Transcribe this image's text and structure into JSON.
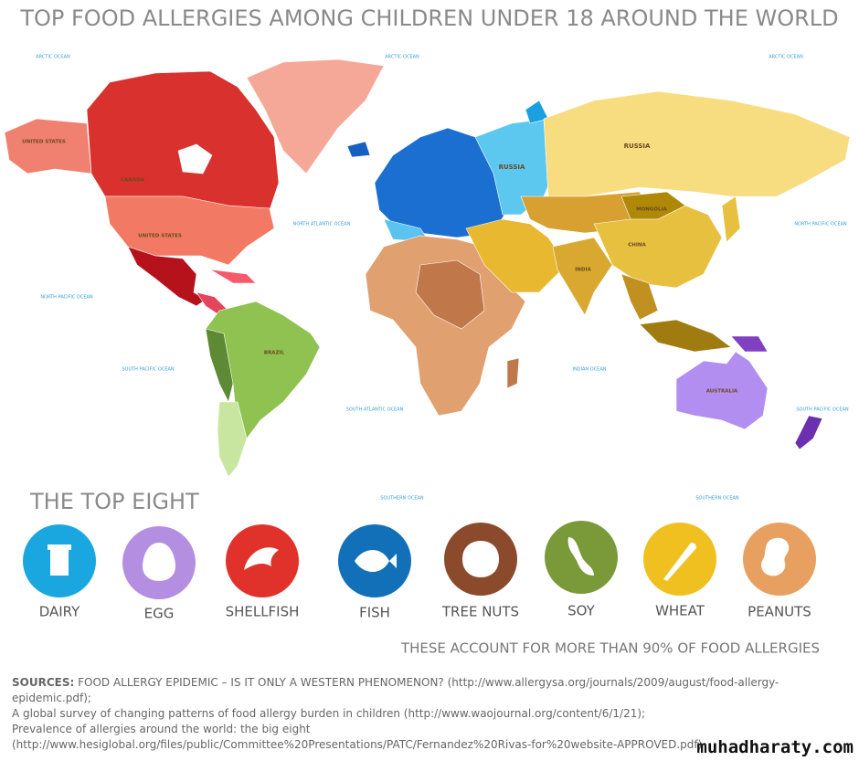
{
  "header": {
    "title": "TOP FOOD ALLERGIES AMONG CHILDREN UNDER 18 AROUND THE WORLD"
  },
  "map": {
    "labels": [
      "ARCTIC OCEAN",
      "ARCTIC OCEAN",
      "ARCTIC OCEAN",
      "NORTH ATLANTIC OCEAN",
      "NORTH PACIFIC OCEAN",
      "NORTH PACIFIC OCEAN",
      "SOUTH PACIFIC OCEAN",
      "SOUTH ATLANTIC OCEAN",
      "INDIAN OCEAN",
      "SOUTH PACIFIC OCEAN",
      "SOUTHERN OCEAN",
      "SOUTHERN OCEAN",
      "UNITED STATES",
      "CANADA",
      "UNITED STATES",
      "BRAZIL",
      "RUSSIA",
      "RUSSIA",
      "MONGOLIA",
      "CHINA",
      "INDIA",
      "AUSTRALIA"
    ]
  },
  "allergens": {
    "title": "THE TOP EIGHT",
    "items": [
      "DAIRY",
      "EGG",
      "SHELLFISH",
      "FISH",
      "TREE NUTS",
      "SOY",
      "WHEAT",
      "PEANUTS"
    ],
    "note": "THESE ACCOUNT FOR MORE THAN 90% OF FOOD ALLERGIES"
  },
  "sources": {
    "label": "SOURCES:",
    "lines": [
      "FOOD ALLERGY EPIDEMIC – IS IT ONLY A WESTERN PHENOMENON? (http://www.allergysa.org/journals/2009/august/food-allergy-epidemic.pdf);",
      "A global survey of changing patterns of food allergy burden in children (http://www.waojournal.org/content/6/1/21);",
      "Prevalence of allergies around the world: the big eight",
      "(http://www.hesiglobal.org/files/public/Committee%20Presentations/PATC/Fernandez%20Rivas-for%20website-APPROVED.pdf)"
    ]
  },
  "watermark": "muhadharaty.com"
}
